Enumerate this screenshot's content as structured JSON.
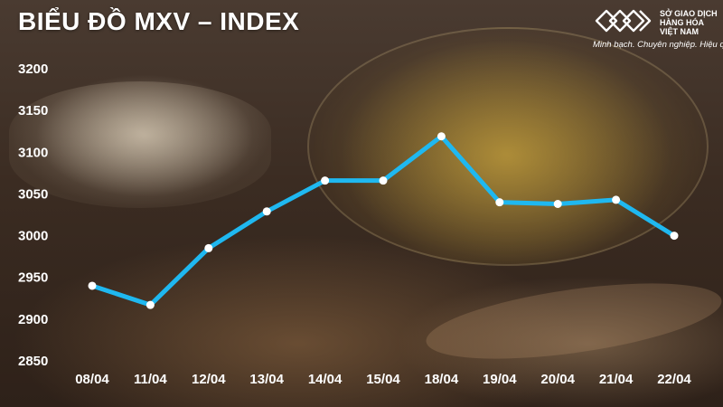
{
  "header": {
    "title": "BIỂU ĐỒ MXV – INDEX"
  },
  "logo": {
    "name": "SỞ GIAO DỊCH\nHÀNG HÓA\nVIỆT NAM",
    "tagline": "Minh bạch. Chuyên nghiệp. Hiệu quả",
    "icon": "mxv-logo-icon"
  },
  "colors": {
    "line": "#1fb8f0",
    "text": "#ffffff"
  },
  "chart_data": {
    "type": "line",
    "title": "BIỂU ĐỒ MXV – INDEX",
    "xlabel": "",
    "ylabel": "",
    "categories": [
      "08/04",
      "11/04",
      "12/04",
      "13/04",
      "14/04",
      "15/04",
      "18/04",
      "19/04",
      "20/04",
      "21/04",
      "22/04"
    ],
    "values": [
      2940,
      2917,
      2985,
      3029,
      3066,
      3066,
      3119,
      3040,
      3038,
      3043,
      3000
    ],
    "ylim": [
      2850,
      3200
    ],
    "yticks": [
      2850,
      2900,
      2950,
      3000,
      3050,
      3100,
      3150,
      3200
    ],
    "grid": false,
    "legend": "none"
  }
}
